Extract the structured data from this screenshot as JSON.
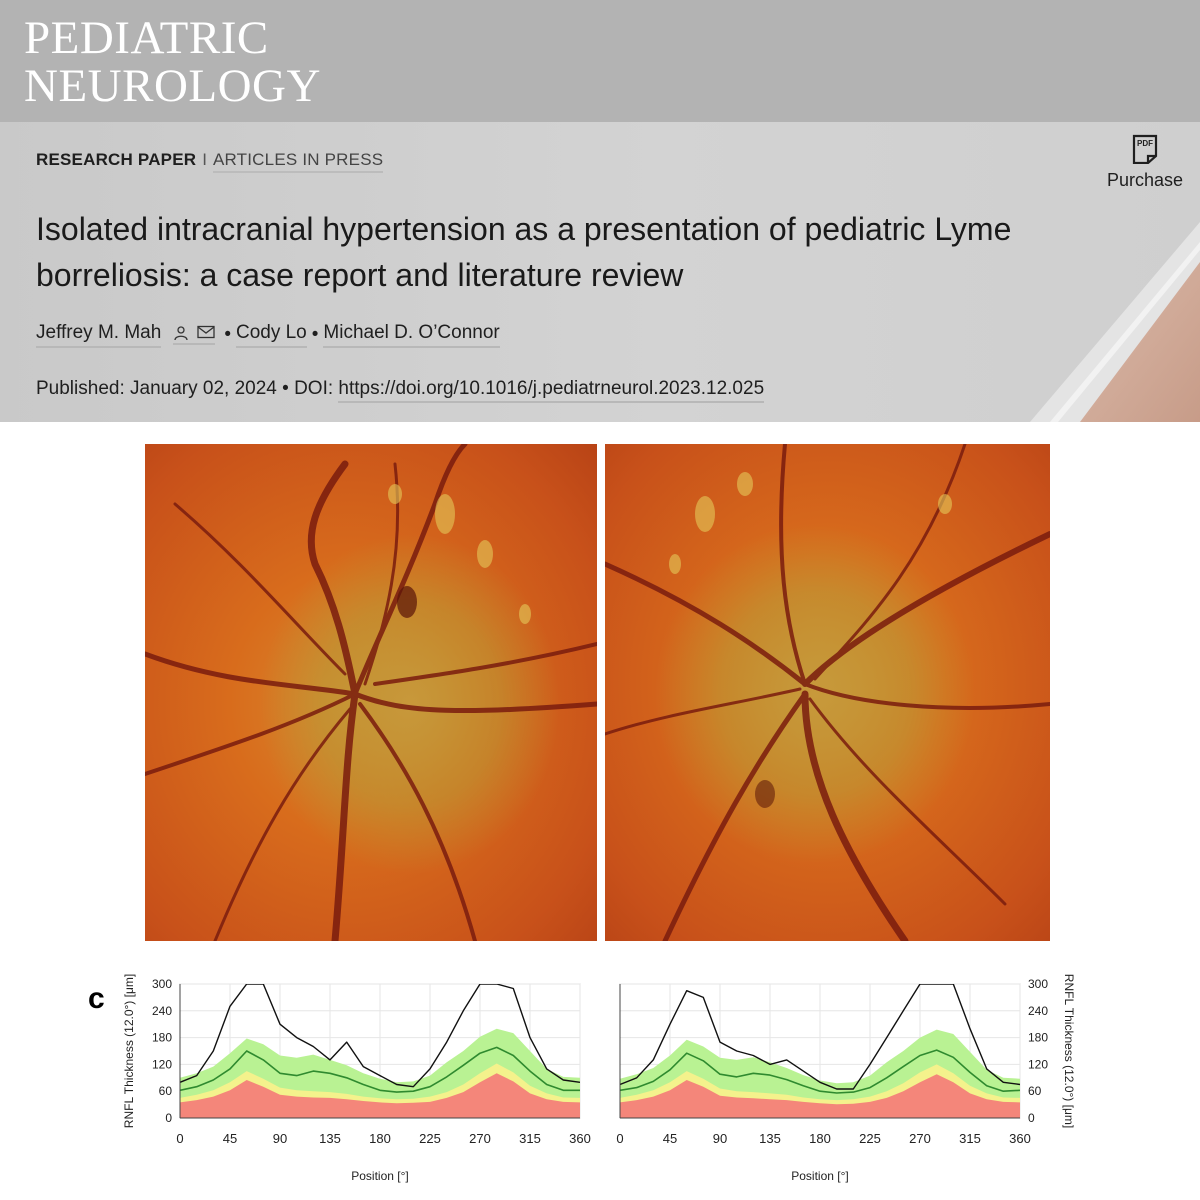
{
  "journal": {
    "line1": "PEDIATRIC",
    "line2": "NEUROLOGY"
  },
  "article": {
    "type": "RESEARCH PAPER",
    "separator": "I",
    "status": "ARTICLES IN PRESS",
    "title_line1": "Isolated intracranial hypertension as a presentation of pediatric Lyme",
    "title_line2": "borreliosis: a case report and literature review",
    "authors": [
      "Jeffrey M. Mah",
      "Cody Lo",
      "Michael D. O’Connor"
    ],
    "author_bullet": "•",
    "published_label": "Published:",
    "published_date": "January 02, 2024",
    "doi_label": "DOI:",
    "doi": "https://doi.org/10.1016/j.pediatrneurol.2023.12.025"
  },
  "purchase": {
    "label": "Purchase",
    "icon": "pdf-icon",
    "icon_text": "PDF"
  },
  "author_icons": [
    "person-icon",
    "envelope-icon"
  ],
  "figure": {
    "panel_label": "c"
  },
  "colors": {
    "band_red": "#f4867a",
    "band_yellow": "#f4f28c",
    "band_green": "#b9f293",
    "normal_line": "#2f8a2f",
    "patient_line": "#111111"
  },
  "chart_data": [
    {
      "type": "line",
      "position": "left",
      "xlabel": "Position [°]",
      "ylabel": "RNFL Thickness (12.0°) [μm]",
      "xlim": [
        0,
        360
      ],
      "ylim": [
        0,
        300
      ],
      "xticks": [
        0,
        45,
        90,
        135,
        180,
        225,
        270,
        315,
        360
      ],
      "yticks": [
        0,
        60,
        120,
        180,
        240,
        300
      ],
      "x": [
        0,
        15,
        30,
        45,
        60,
        75,
        90,
        105,
        120,
        135,
        150,
        165,
        180,
        195,
        210,
        225,
        240,
        255,
        270,
        285,
        300,
        315,
        330,
        345,
        360
      ],
      "bands": {
        "red_top": [
          35,
          40,
          48,
          62,
          85,
          70,
          52,
          48,
          46,
          45,
          42,
          38,
          35,
          33,
          34,
          36,
          45,
          58,
          80,
          100,
          82,
          55,
          42,
          36,
          35
        ],
        "yellow_top": [
          45,
          52,
          62,
          80,
          105,
          88,
          68,
          62,
          60,
          58,
          54,
          48,
          44,
          42,
          43,
          48,
          58,
          75,
          100,
          122,
          102,
          72,
          55,
          46,
          45
        ],
        "green_top": [
          90,
          100,
          115,
          145,
          178,
          165,
          140,
          135,
          142,
          130,
          118,
          100,
          88,
          80,
          82,
          95,
          125,
          150,
          182,
          200,
          190,
          150,
          110,
          92,
          90
        ]
      },
      "series": [
        {
          "values": [
            62,
            70,
            85,
            110,
            150,
            130,
            100,
            95,
            105,
            100,
            90,
            75,
            62,
            58,
            60,
            70,
            92,
            118,
            145,
            158,
            140,
            105,
            75,
            62,
            62
          ]
        },
        {
          "values": [
            80,
            95,
            150,
            250,
            330,
            310,
            210,
            180,
            160,
            130,
            170,
            115,
            95,
            75,
            70,
            110,
            170,
            240,
            300,
            330,
            290,
            180,
            110,
            85,
            80
          ]
        }
      ]
    },
    {
      "type": "line",
      "position": "right",
      "xlabel": "Position [°]",
      "ylabel": "RNFL Thickness (12.0°) [μm]",
      "xlim": [
        0,
        360
      ],
      "ylim": [
        0,
        300
      ],
      "xticks": [
        0,
        45,
        90,
        135,
        180,
        225,
        270,
        315,
        360
      ],
      "yticks": [
        0,
        60,
        120,
        180,
        240,
        300
      ],
      "x": [
        0,
        15,
        30,
        45,
        60,
        75,
        90,
        105,
        120,
        135,
        150,
        165,
        180,
        195,
        210,
        225,
        240,
        255,
        270,
        285,
        300,
        315,
        330,
        345,
        360
      ],
      "bands": {
        "red_top": [
          35,
          40,
          48,
          62,
          85,
          70,
          50,
          46,
          44,
          42,
          40,
          36,
          33,
          31,
          32,
          36,
          45,
          60,
          80,
          98,
          80,
          55,
          42,
          36,
          35
        ],
        "yellow_top": [
          45,
          52,
          62,
          80,
          105,
          88,
          66,
          60,
          58,
          55,
          52,
          46,
          42,
          40,
          42,
          48,
          60,
          78,
          102,
          120,
          100,
          72,
          55,
          46,
          45
        ],
        "green_top": [
          88,
          98,
          112,
          140,
          175,
          160,
          135,
          130,
          136,
          125,
          112,
          96,
          84,
          78,
          80,
          95,
          125,
          150,
          180,
          198,
          188,
          148,
          108,
          90,
          88
        ]
      },
      "series": [
        {
          "values": [
            62,
            68,
            82,
            108,
            145,
            128,
            98,
            92,
            100,
            96,
            86,
            72,
            60,
            56,
            58,
            68,
            90,
            115,
            140,
            152,
            136,
            102,
            72,
            60,
            62
          ]
        },
        {
          "values": [
            75,
            90,
            130,
            210,
            285,
            270,
            170,
            150,
            140,
            120,
            130,
            105,
            80,
            65,
            65,
            120,
            180,
            240,
            300,
            340,
            320,
            200,
            110,
            80,
            75
          ]
        }
      ]
    }
  ]
}
